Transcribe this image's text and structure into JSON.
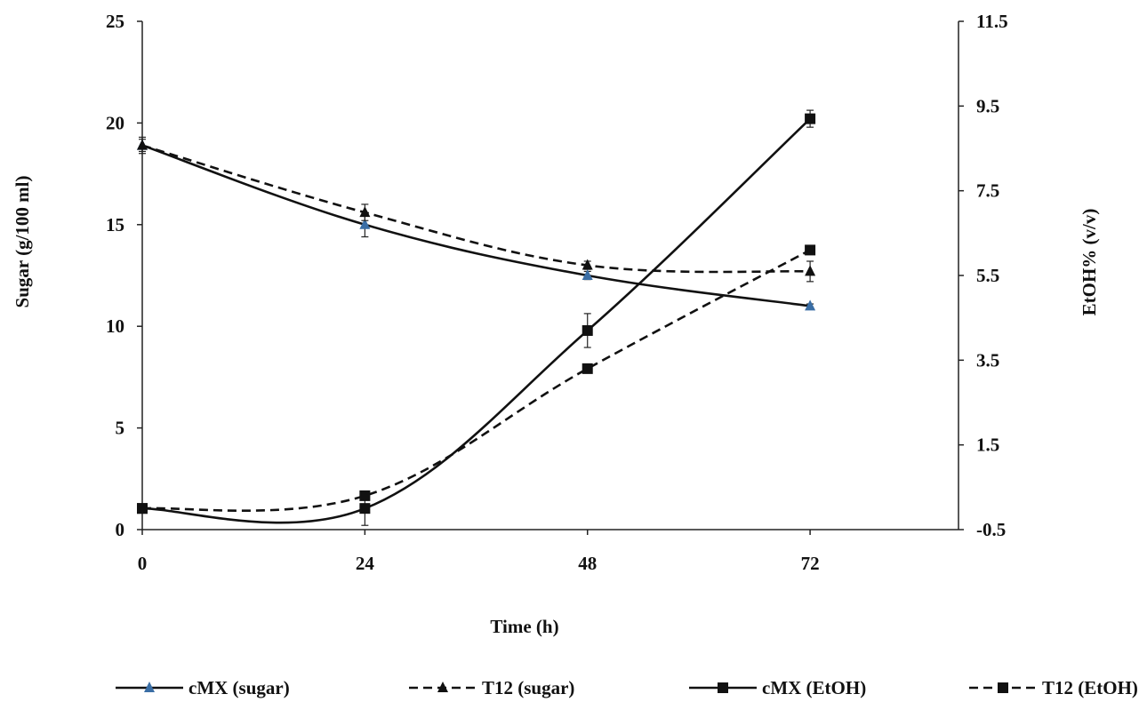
{
  "chart_data": {
    "type": "line",
    "xlabel": "Time (h)",
    "ylabel": "Sugar (g/100 ml)",
    "y2label": "EtOH% (v/v)",
    "x_ticks": [
      "0",
      "24",
      "48",
      "72"
    ],
    "y_ticks": [
      "0",
      "5",
      "10",
      "15",
      "20",
      "25"
    ],
    "y2_ticks": [
      "-0.5",
      "1.5",
      "3.5",
      "5.5",
      "7.5",
      "9.5",
      "11.5"
    ],
    "xlim": [
      0,
      88
    ],
    "ylim": [
      0,
      25
    ],
    "y2lim": [
      -0.5,
      11.5
    ],
    "grid": false,
    "legend_position": "bottom",
    "series": [
      {
        "name": "cMX (sugar)",
        "axis": "left",
        "marker": "triangle",
        "dashed": false,
        "color": "#111111",
        "marker_color": "#3a6ea5",
        "x": [
          0,
          24,
          48,
          72
        ],
        "values": [
          18.9,
          15.0,
          12.5,
          11.0
        ],
        "errors": [
          0.4,
          0.6,
          0.2,
          0.1
        ]
      },
      {
        "name": "T12 (sugar)",
        "axis": "left",
        "marker": "triangle",
        "dashed": true,
        "color": "#111111",
        "marker_color": "#111111",
        "x": [
          0,
          24,
          48,
          72
        ],
        "values": [
          18.9,
          15.6,
          13.0,
          12.7
        ],
        "errors": [
          0.3,
          0.4,
          0.2,
          0.5
        ]
      },
      {
        "name": "cMX (EtOH)",
        "axis": "right",
        "marker": "square",
        "dashed": false,
        "color": "#111111",
        "marker_color": "#111111",
        "x": [
          0,
          24,
          48,
          72
        ],
        "values": [
          0.0,
          0.0,
          4.2,
          9.2
        ],
        "errors": [
          0.0,
          0.4,
          0.4,
          0.2
        ]
      },
      {
        "name": "T12 (EtOH)",
        "axis": "right",
        "marker": "square",
        "dashed": true,
        "color": "#111111",
        "marker_color": "#111111",
        "x": [
          0,
          24,
          48,
          72
        ],
        "values": [
          0.0,
          0.3,
          3.3,
          6.1
        ],
        "errors": [
          0.0,
          0.1,
          0.0,
          0.1
        ]
      }
    ]
  }
}
